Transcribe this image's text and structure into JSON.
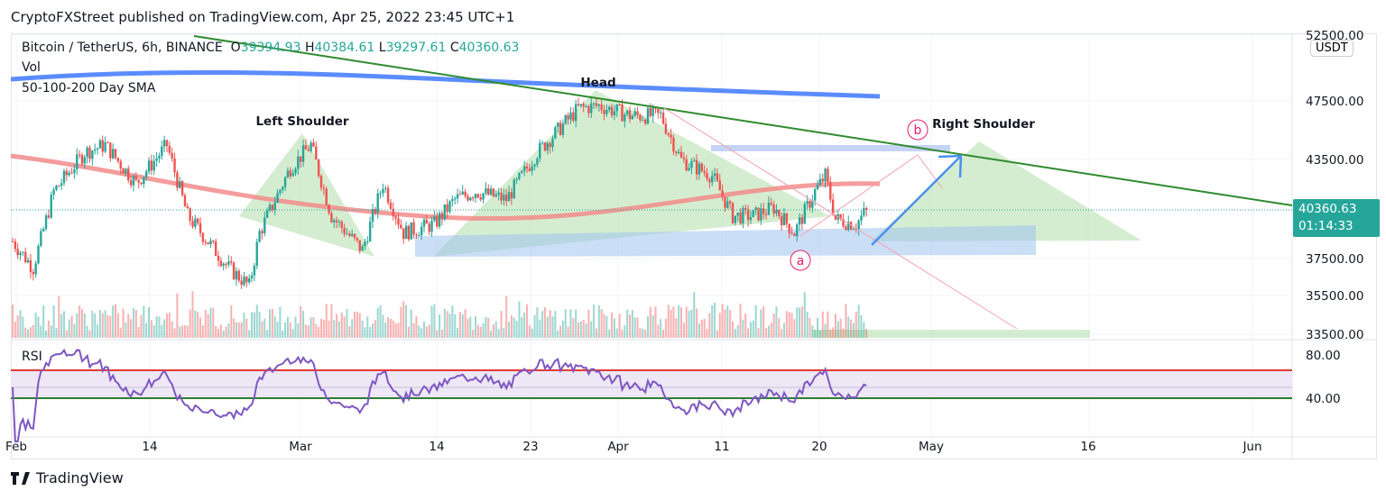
{
  "published": "CryptoFXStreet published on TradingView.com, Apr 25, 2022 23:45 UTC+1",
  "legend": {
    "symbol": "Bitcoin / TetherUS, 6h, BINANCE",
    "o_label": "O",
    "o": "39394.93",
    "h_label": "H",
    "h": "40384.61",
    "l_label": "L",
    "l": "39297.61",
    "c_label": "C",
    "c": "40360.63",
    "vol": "Vol",
    "sma": "50-100-200 Day SMA",
    "rsi": "RSI"
  },
  "currency": "USDT",
  "price_tag": {
    "price": "40360.63",
    "countdown": "01:14:33"
  },
  "annotations": {
    "head": "Head",
    "left_shoulder": "Left Shoulder",
    "right_shoulder": "Right Shoulder",
    "a": "a",
    "b": "b"
  },
  "branding": "TradingView",
  "colors": {
    "up": "#26a69a",
    "down": "#ef5350",
    "sma200": "#5b8cff",
    "sma100": "#f28b8b",
    "trend": "#2e8b2e",
    "rsi": "#7e57c2"
  },
  "chart_data": {
    "type": "candlestick",
    "title": "Bitcoin / TetherUS, 6h, BINANCE",
    "y_ticks": [
      "52500.00",
      "47500.00",
      "43500.00",
      "37500.00",
      "35500.00",
      "33500.00"
    ],
    "rsi_ticks": [
      "80.00",
      "40.00"
    ],
    "x_ticks": [
      "Feb",
      "14",
      "Mar",
      "14",
      "23",
      "Apr",
      "11",
      "20",
      "May",
      "16",
      "Jun"
    ],
    "daily_close_anchors": [
      [
        "Feb 1",
        38500
      ],
      [
        "Feb 3",
        37000
      ],
      [
        "Feb 5",
        41500
      ],
      [
        "Feb 8",
        44000
      ],
      [
        "Feb 10",
        44500
      ],
      [
        "Feb 13",
        42000
      ],
      [
        "Feb 16",
        44500
      ],
      [
        "Feb 18",
        40000
      ],
      [
        "Feb 20",
        38500
      ],
      [
        "Feb 22",
        37000
      ],
      [
        "Feb 24",
        36000
      ],
      [
        "Feb 25",
        39000
      ],
      [
        "Feb 28",
        43000
      ],
      [
        "Mar 2",
        44500
      ],
      [
        "Mar 4",
        40000
      ],
      [
        "Mar 7",
        38000
      ],
      [
        "Mar 9",
        42000
      ],
      [
        "Mar 11",
        39000
      ],
      [
        "Mar 14",
        39500
      ],
      [
        "Mar 16",
        41000
      ],
      [
        "Mar 18",
        41500
      ],
      [
        "Mar 21",
        41000
      ],
      [
        "Mar 24",
        44000
      ],
      [
        "Mar 28",
        47000
      ],
      [
        "Mar 30",
        47200
      ],
      [
        "Apr 2",
        46500
      ],
      [
        "Apr 5",
        46500
      ],
      [
        "Apr 7",
        43500
      ],
      [
        "Apr 10",
        42500
      ],
      [
        "Apr 12",
        40000
      ],
      [
        "Apr 14",
        40000
      ],
      [
        "Apr 16",
        40500
      ],
      [
        "Apr 18",
        39000
      ],
      [
        "Apr 20",
        41500
      ],
      [
        "Apr 21",
        42500
      ],
      [
        "Apr 22",
        39800
      ],
      [
        "Apr 24",
        39500
      ],
      [
        "Apr 25",
        40360.63
      ]
    ],
    "last": {
      "open": 39394.93,
      "high": 40384.61,
      "low": 39297.61,
      "close": 40360.63
    },
    "rsi_levels": [
      70,
      40
    ]
  }
}
